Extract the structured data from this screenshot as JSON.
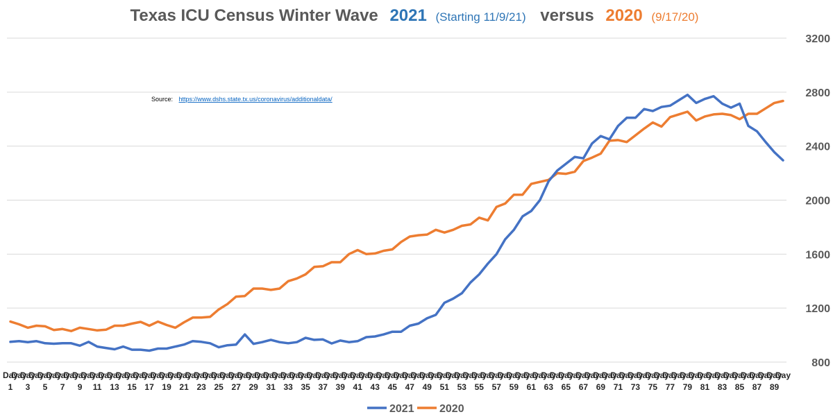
{
  "chart_data": {
    "type": "line",
    "title": {
      "main": "Texas ICU Census Winter Wave",
      "series_a_year": "2021",
      "series_a_note": "(Starting 11/9/21)",
      "connector": "versus",
      "series_b_year": "2020",
      "series_b_note": "(9/17/20)"
    },
    "source_label": "Source:",
    "source_link": "https://www.dshs.state.tx.us/coronavirus/additionaldata/",
    "x_tick_prefix": "Day",
    "x": [
      1,
      2,
      3,
      4,
      5,
      6,
      7,
      8,
      9,
      10,
      11,
      12,
      13,
      14,
      15,
      16,
      17,
      18,
      19,
      20,
      21,
      22,
      23,
      24,
      25,
      26,
      27,
      28,
      29,
      30,
      31,
      32,
      33,
      34,
      35,
      36,
      37,
      38,
      39,
      40,
      41,
      42,
      43,
      44,
      45,
      46,
      47,
      48,
      49,
      50,
      51,
      52,
      53,
      54,
      55,
      56,
      57,
      58,
      59,
      60,
      61,
      62,
      63,
      64,
      65,
      66,
      67,
      68,
      69,
      70,
      71,
      72,
      73,
      74,
      75,
      76,
      77,
      78,
      79,
      80,
      81,
      82,
      83,
      84,
      85,
      86,
      87,
      88,
      89,
      90
    ],
    "ylim": [
      800,
      3200
    ],
    "yticks": [
      800,
      1200,
      1600,
      2000,
      2400,
      2800,
      3200
    ],
    "grid": true,
    "legend_position": "bottom",
    "series": [
      {
        "name": "2021",
        "color": "#4472C4",
        "values": [
          950,
          955,
          948,
          955,
          940,
          936,
          940,
          940,
          922,
          950,
          915,
          905,
          895,
          915,
          892,
          892,
          885,
          900,
          900,
          915,
          930,
          955,
          950,
          940,
          910,
          925,
          930,
          1005,
          935,
          948,
          965,
          948,
          940,
          948,
          980,
          965,
          968,
          938,
          960,
          948,
          955,
          985,
          990,
          1005,
          1025,
          1025,
          1070,
          1085,
          1125,
          1150,
          1240,
          1270,
          1310,
          1390,
          1450,
          1530,
          1600,
          1710,
          1780,
          1880,
          1920,
          2000,
          2140,
          2220,
          2270,
          2320,
          2310,
          2420,
          2475,
          2450,
          2550,
          2610,
          2610,
          2675,
          2660,
          2690,
          2700,
          2740,
          2780,
          2720,
          2750,
          2770,
          2715,
          2685,
          2715,
          2550,
          2510,
          2430,
          2355,
          2295
        ]
      },
      {
        "name": "2020",
        "color": "#ED7D31",
        "values": [
          1100,
          1080,
          1055,
          1070,
          1065,
          1038,
          1045,
          1030,
          1055,
          1045,
          1035,
          1040,
          1070,
          1070,
          1085,
          1098,
          1070,
          1100,
          1075,
          1055,
          1095,
          1130,
          1130,
          1135,
          1190,
          1230,
          1285,
          1290,
          1345,
          1345,
          1335,
          1345,
          1400,
          1420,
          1450,
          1505,
          1510,
          1540,
          1540,
          1600,
          1630,
          1600,
          1605,
          1625,
          1635,
          1690,
          1730,
          1740,
          1745,
          1780,
          1760,
          1780,
          1810,
          1820,
          1870,
          1850,
          1950,
          1975,
          2040,
          2040,
          2120,
          2135,
          2150,
          2200,
          2195,
          2210,
          2290,
          2315,
          2345,
          2440,
          2445,
          2430,
          2480,
          2530,
          2575,
          2545,
          2615,
          2635,
          2655,
          2590,
          2620,
          2635,
          2640,
          2630,
          2600,
          2640,
          2640,
          2680,
          2720,
          2735
        ]
      }
    ]
  }
}
